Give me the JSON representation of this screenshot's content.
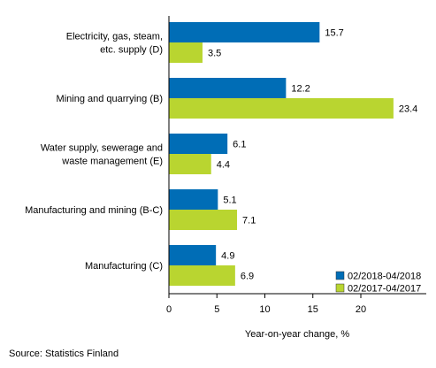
{
  "chart_data": {
    "type": "bar",
    "orientation": "horizontal",
    "categories": [
      [
        "Electricity, gas, steam,",
        "etc. supply (D)"
      ],
      [
        "Mining and quarrying (B)"
      ],
      [
        "Water supply, sewerage and",
        "waste management (E)"
      ],
      [
        "Manufacturing and mining (B-C)"
      ],
      [
        "Manufacturing (C)"
      ]
    ],
    "series": [
      {
        "name": "02/2018-04/2018",
        "color": "#006db6",
        "values": [
          15.7,
          12.2,
          6.1,
          5.1,
          4.9
        ]
      },
      {
        "name": "02/2017-04/2017",
        "color": "#b9d530",
        "values": [
          3.5,
          23.4,
          4.4,
          7.1,
          6.9
        ]
      }
    ],
    "xlabel": "Year-on-year change, %",
    "xlim": [
      0,
      25
    ],
    "xticks": [
      0,
      5,
      10,
      15,
      20
    ],
    "grid": false,
    "legend_position": "bottom-right"
  },
  "source": "Source: Statistics Finland"
}
